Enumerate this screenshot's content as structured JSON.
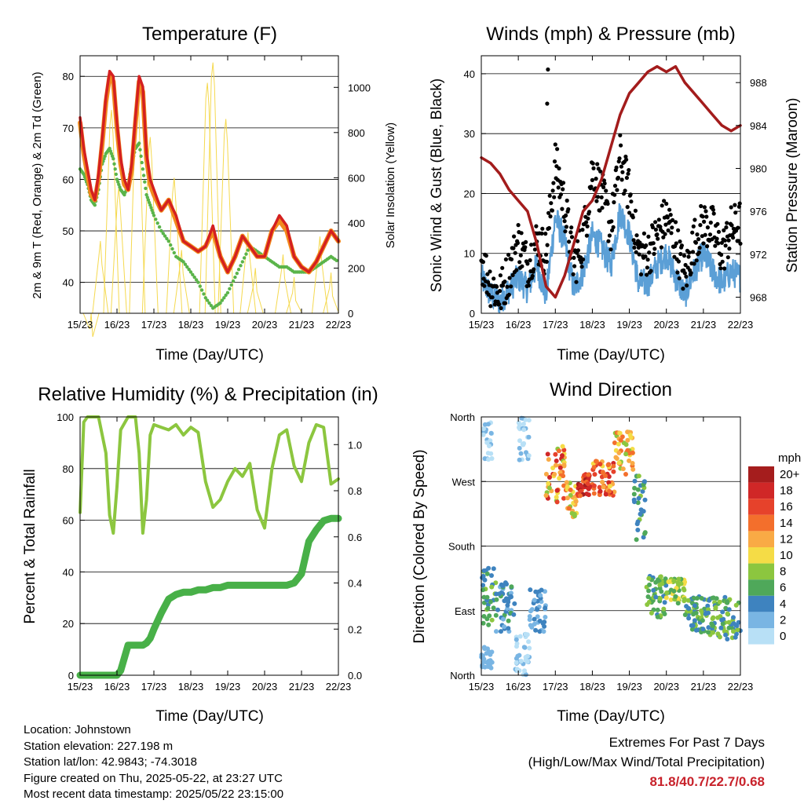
{
  "colors": {
    "temp_2m": "#d42020",
    "temp_9m": "#f28a1d",
    "dewpoint": "#5ab44a",
    "solar": "#f5d94f",
    "wind_speed": "#5b9fd6",
    "gust": "#000000",
    "pressure": "#a31c1c",
    "rh": "#8cc63f",
    "precip": "#48b048",
    "extremes": "#c8222b"
  },
  "x_tick_labels": [
    "15/23",
    "16/23",
    "17/23",
    "18/23",
    "19/23",
    "20/23",
    "21/23",
    "22/23"
  ],
  "chart_data": [
    {
      "type": "line",
      "title": "Temperature (F)",
      "xlabel": "Time (Day/UTC)",
      "ylabel": "2m & 9m T (Red, Orange) & 2m Td (Green)",
      "y2label": "Solar Insolation (Yellow)",
      "ylim": [
        34,
        84
      ],
      "yticks": [
        40,
        50,
        60,
        70,
        80
      ],
      "y2lim": [
        0,
        1140
      ],
      "y2ticks": [
        0,
        200,
        400,
        600,
        800,
        1000
      ],
      "grid": true,
      "x": [
        0,
        0.1,
        0.2,
        0.3,
        0.4,
        0.5,
        0.6,
        0.7,
        0.8,
        0.9,
        1.0,
        1.1,
        1.2,
        1.3,
        1.4,
        1.5,
        1.6,
        1.7,
        1.8,
        1.9,
        2.0,
        2.2,
        2.4,
        2.6,
        2.8,
        3.0,
        3.2,
        3.4,
        3.6,
        3.8,
        4.0,
        4.2,
        4.4,
        4.6,
        4.8,
        5.0,
        5.2,
        5.4,
        5.6,
        5.8,
        6.0,
        6.2,
        6.4,
        6.6,
        6.8,
        7.0
      ],
      "series": [
        {
          "key": "t2m",
          "values": [
            72,
            66,
            62,
            58,
            56,
            61,
            68,
            76,
            81,
            80,
            71,
            64,
            60,
            58,
            63,
            72,
            80,
            78,
            65,
            60,
            58,
            54,
            56,
            53,
            48,
            47,
            46,
            47,
            51,
            45,
            42,
            45,
            49,
            47,
            45,
            45,
            50,
            53,
            51,
            45,
            43,
            42,
            44,
            47,
            50,
            48
          ]
        },
        {
          "key": "t9m",
          "values": [
            71,
            65,
            61,
            57,
            56,
            60,
            67,
            75,
            80,
            79,
            70,
            63,
            59,
            58,
            62,
            71,
            79,
            77,
            64,
            59,
            57,
            54,
            56,
            52,
            48,
            47,
            46,
            47,
            50,
            45,
            42,
            45,
            49,
            47,
            45,
            45,
            50,
            52,
            50,
            45,
            43,
            42,
            44,
            47,
            50,
            48
          ]
        },
        {
          "key": "td",
          "values": [
            62,
            61,
            59,
            56,
            55,
            58,
            63,
            65,
            66,
            64,
            60,
            58,
            57,
            59,
            63,
            66,
            67,
            62,
            57,
            55,
            53,
            50,
            48,
            45,
            44,
            42,
            40,
            37,
            35,
            36,
            38,
            41,
            44,
            47,
            46,
            45,
            44,
            43,
            43,
            42,
            42,
            42,
            43,
            44,
            45,
            44
          ]
        }
      ],
      "solar_peaks": [
        {
          "x": 0.3,
          "value": 0
        },
        {
          "x": 0.55,
          "value": 320
        },
        {
          "x": 0.85,
          "value": 900
        },
        {
          "x": 1.05,
          "value": 560
        },
        {
          "x": 1.55,
          "value": 1000
        },
        {
          "x": 1.9,
          "value": 780
        },
        {
          "x": 2.55,
          "value": 600
        },
        {
          "x": 2.75,
          "value": 280
        },
        {
          "x": 3.45,
          "value": 1020
        },
        {
          "x": 3.6,
          "value": 1110
        },
        {
          "x": 3.95,
          "value": 860
        },
        {
          "x": 4.55,
          "value": 360
        },
        {
          "x": 4.75,
          "value": 200
        },
        {
          "x": 5.5,
          "value": 260
        },
        {
          "x": 5.8,
          "value": 160
        },
        {
          "x": 6.5,
          "value": 340
        },
        {
          "x": 6.8,
          "value": 180
        }
      ]
    },
    {
      "type": "scatter",
      "title": "Winds (mph) & Pressure (mb)",
      "xlabel": "Time (Day/UTC)",
      "ylabel": "Sonic Wind & Gust (Blue, Black)",
      "y2label": "Station Pressure (Maroon)",
      "ylim": [
        0,
        43
      ],
      "yticks": [
        0,
        10,
        20,
        30,
        40
      ],
      "y2lim": [
        966.5,
        990.5
      ],
      "y2ticks": [
        968,
        972,
        976,
        980,
        984,
        988
      ],
      "grid": true,
      "x": [
        0,
        0.25,
        0.5,
        0.75,
        1.0,
        1.25,
        1.5,
        1.75,
        2.0,
        2.25,
        2.5,
        2.75,
        3.0,
        3.25,
        3.5,
        3.75,
        4.0,
        4.25,
        4.5,
        4.75,
        5.0,
        5.25,
        5.5,
        5.75,
        6.0,
        6.25,
        6.5,
        6.75,
        7.0
      ],
      "wind": [
        6,
        3,
        2,
        4,
        6,
        4,
        8,
        3,
        16,
        12,
        4,
        7,
        13,
        11,
        8,
        17,
        13,
        5,
        5,
        8,
        10,
        6,
        3,
        7,
        10,
        7,
        5,
        7,
        6
      ],
      "gust": [
        9,
        5,
        3,
        7,
        12,
        8,
        12,
        10,
        25,
        18,
        8,
        12,
        24,
        20,
        14,
        26,
        20,
        10,
        10,
        13,
        16,
        12,
        6,
        12,
        15,
        14,
        10,
        14,
        15
      ],
      "gust_extremes": [
        {
          "x": 1.8,
          "value": 40.7
        },
        {
          "x": 1.78,
          "value": 35
        }
      ],
      "pressure": [
        981,
        980.5,
        979.5,
        978,
        977,
        976,
        973,
        969,
        968,
        970,
        973,
        976,
        977,
        979,
        982,
        985,
        987,
        988,
        989,
        989.5,
        989,
        989.5,
        988,
        987,
        986,
        985,
        984,
        983.5,
        984
      ]
    },
    {
      "type": "line",
      "title": "Relative Humidity (%) & Precipitation (in)",
      "xlabel": "Time (Day/UTC)",
      "ylabel": "Percent & Total Rainfall",
      "ylim": [
        0,
        100
      ],
      "yticks": [
        0,
        20,
        40,
        60,
        80,
        100
      ],
      "y2lim": [
        0,
        1.12
      ],
      "y2ticks": [
        0.0,
        0.2,
        0.4,
        0.6,
        0.8,
        1.0
      ],
      "grid": true,
      "x": [
        0,
        0.1,
        0.2,
        0.3,
        0.5,
        0.7,
        0.8,
        0.9,
        1.0,
        1.1,
        1.3,
        1.5,
        1.6,
        1.7,
        1.8,
        1.9,
        2.0,
        2.2,
        2.4,
        2.6,
        2.8,
        3.0,
        3.2,
        3.4,
        3.6,
        3.8,
        4.0,
        4.2,
        4.4,
        4.6,
        4.8,
        5.0,
        5.2,
        5.4,
        5.6,
        5.8,
        6.0,
        6.2,
        6.4,
        6.6,
        6.8,
        7.0
      ],
      "series": [
        {
          "key": "rh",
          "values": [
            63,
            98,
            100,
            100,
            100,
            86,
            62,
            55,
            73,
            95,
            100,
            100,
            86,
            55,
            68,
            93,
            97,
            96,
            95,
            97,
            93,
            96,
            94,
            75,
            65,
            68,
            75,
            80,
            77,
            82,
            64,
            57,
            80,
            93,
            95,
            81,
            75,
            90,
            97,
            96,
            74,
            76
          ]
        },
        {
          "key": "precip",
          "values": [
            0,
            0,
            0,
            0,
            0,
            0,
            0,
            0,
            0,
            0.02,
            0.13,
            0.13,
            0.13,
            0.13,
            0.14,
            0.16,
            0.2,
            0.27,
            0.33,
            0.35,
            0.36,
            0.36,
            0.37,
            0.37,
            0.38,
            0.38,
            0.39,
            0.39,
            0.39,
            0.39,
            0.39,
            0.39,
            0.39,
            0.39,
            0.39,
            0.4,
            0.44,
            0.58,
            0.63,
            0.67,
            0.68,
            0.68
          ]
        }
      ]
    },
    {
      "type": "scatter",
      "title": "Wind Direction",
      "xlabel": "Time (Day/UTC)",
      "ylabel": "Direction (Colored By Speed)",
      "y_tick_labels": [
        "North",
        "East",
        "South",
        "West",
        "North"
      ],
      "ylim": [
        0,
        360
      ],
      "grid": true,
      "colorbar": {
        "title": "mph",
        "labels": [
          "20+",
          "18",
          "16",
          "14",
          "12",
          "10",
          "8",
          "6",
          "4",
          "2",
          "0"
        ],
        "colors": [
          "#a51d1d",
          "#d02727",
          "#e6422b",
          "#f36f2c",
          "#f9aa45",
          "#f5dc46",
          "#8cc63f",
          "#4fa85a",
          "#3e83bf",
          "#79b5e3",
          "#b8e0f6"
        ]
      },
      "segments": [
        {
          "x0": 0.0,
          "x1": 0.3,
          "dir": [
            10,
            40
          ],
          "speed": [
            1,
            3
          ]
        },
        {
          "x0": 0.05,
          "x1": 0.3,
          "dir": [
            300,
            355
          ],
          "speed": [
            0,
            2
          ]
        },
        {
          "x0": 0.0,
          "x1": 0.4,
          "dir": [
            70,
            150
          ],
          "speed": [
            3,
            8
          ]
        },
        {
          "x0": 0.4,
          "x1": 0.9,
          "dir": [
            60,
            130
          ],
          "speed": [
            2,
            6
          ]
        },
        {
          "x0": 0.9,
          "x1": 1.3,
          "dir": [
            0,
            60
          ],
          "speed": [
            0,
            2
          ]
        },
        {
          "x0": 1.0,
          "x1": 1.3,
          "dir": [
            300,
            360
          ],
          "speed": [
            0,
            2
          ]
        },
        {
          "x0": 1.3,
          "x1": 1.75,
          "dir": [
            60,
            120
          ],
          "speed": [
            1,
            5
          ]
        },
        {
          "x0": 1.75,
          "x1": 2.3,
          "dir": [
            240,
            320
          ],
          "speed": [
            8,
            19
          ]
        },
        {
          "x0": 2.3,
          "x1": 2.6,
          "dir": [
            220,
            270
          ],
          "speed": [
            8,
            14
          ]
        },
        {
          "x0": 2.6,
          "x1": 3.0,
          "dir": [
            250,
            280
          ],
          "speed": [
            14,
            20
          ]
        },
        {
          "x0": 3.0,
          "x1": 3.6,
          "dir": [
            250,
            300
          ],
          "speed": [
            10,
            18
          ]
        },
        {
          "x0": 3.6,
          "x1": 4.1,
          "dir": [
            280,
            340
          ],
          "speed": [
            8,
            14
          ]
        },
        {
          "x0": 4.1,
          "x1": 4.45,
          "dir": [
            180,
            280
          ],
          "speed": [
            3,
            8
          ]
        },
        {
          "x0": 4.45,
          "x1": 5.0,
          "dir": [
            80,
            140
          ],
          "speed": [
            4,
            9
          ]
        },
        {
          "x0": 5.0,
          "x1": 5.5,
          "dir": [
            100,
            135
          ],
          "speed": [
            6,
            11
          ]
        },
        {
          "x0": 5.5,
          "x1": 6.1,
          "dir": [
            60,
            110
          ],
          "speed": [
            3,
            8
          ]
        },
        {
          "x0": 6.1,
          "x1": 7.0,
          "dir": [
            50,
            110
          ],
          "speed": [
            3,
            9
          ]
        }
      ]
    }
  ],
  "info": {
    "location": "Location: Johnstown",
    "elevation": "Station elevation: 227.198 m",
    "latlon": "Station lat/lon: 42.9843; -74.3018",
    "created": "Figure created on Thu, 2025-05-22, at 23:27 UTC",
    "recent": "Most recent data timestamp: 2025/05/22 23:15:00"
  },
  "extremes": {
    "heading": "Extremes For Past 7 Days",
    "subheading": "(High/Low/Max Wind/Total Precipitation)",
    "values": "81.8/40.7/22.7/0.68"
  }
}
